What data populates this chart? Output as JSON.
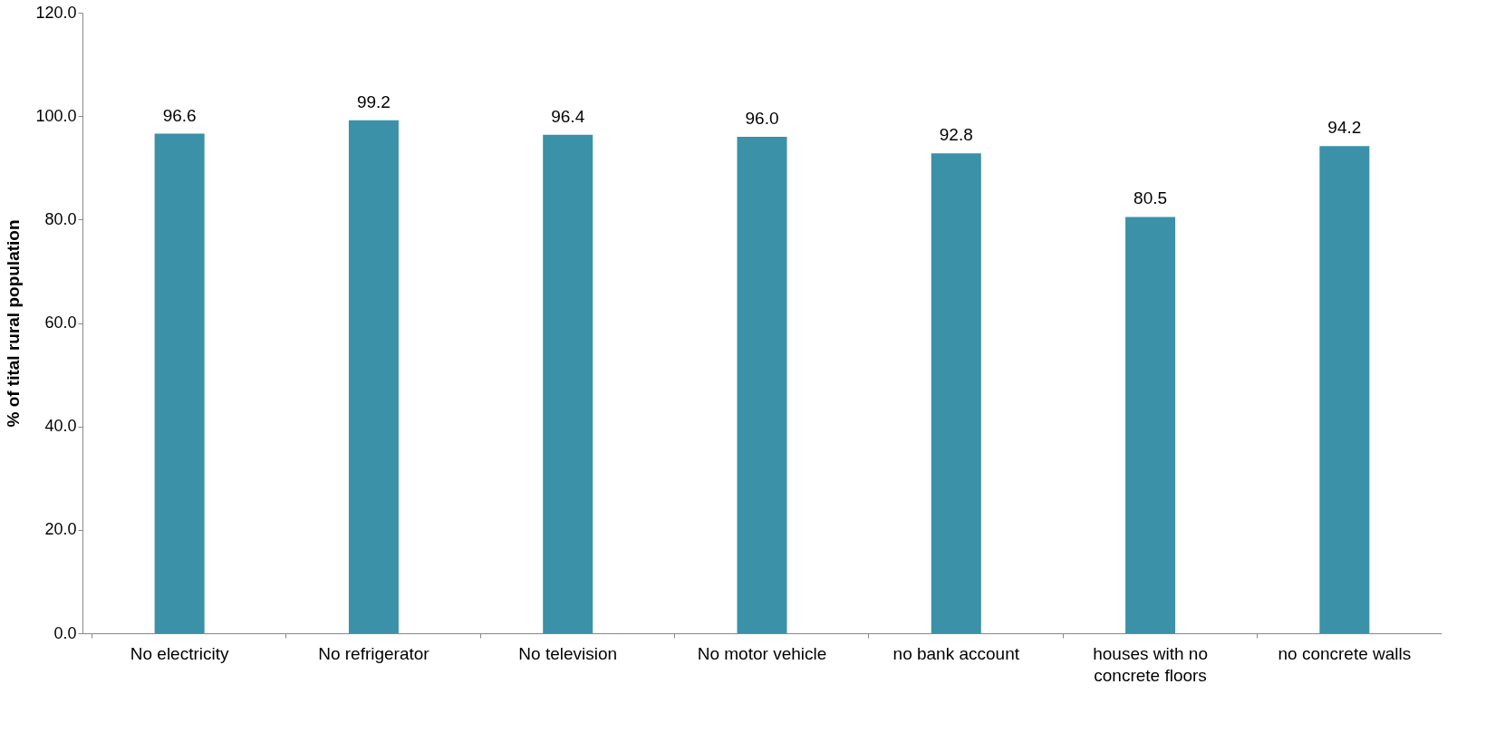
{
  "chart_data": {
    "type": "bar",
    "ylabel": "% of tital rural population",
    "categories": [
      "No electricity",
      "No refrigerator",
      "No television",
      "No motor vehicle",
      "no bank account",
      "houses with no concrete floors",
      "no concrete walls"
    ],
    "values": [
      96.6,
      99.2,
      96.4,
      96.0,
      92.8,
      80.5,
      94.2
    ],
    "color": "#3a91a8",
    "ylim": [
      0,
      120
    ],
    "yticks": [
      {
        "value": 0,
        "label": "0.0"
      },
      {
        "value": 20,
        "label": "20.0"
      },
      {
        "value": 40,
        "label": "40.0"
      },
      {
        "value": 60,
        "label": "60.0"
      },
      {
        "value": 80,
        "label": "80.0"
      },
      {
        "value": 100,
        "label": "100.0"
      },
      {
        "value": 120,
        "label": "120.0"
      }
    ],
    "value_labels": [
      "96.6",
      "99.2",
      "96.4",
      "96.0",
      "92.8",
      "80.5",
      "94.2"
    ],
    "grid": false
  }
}
